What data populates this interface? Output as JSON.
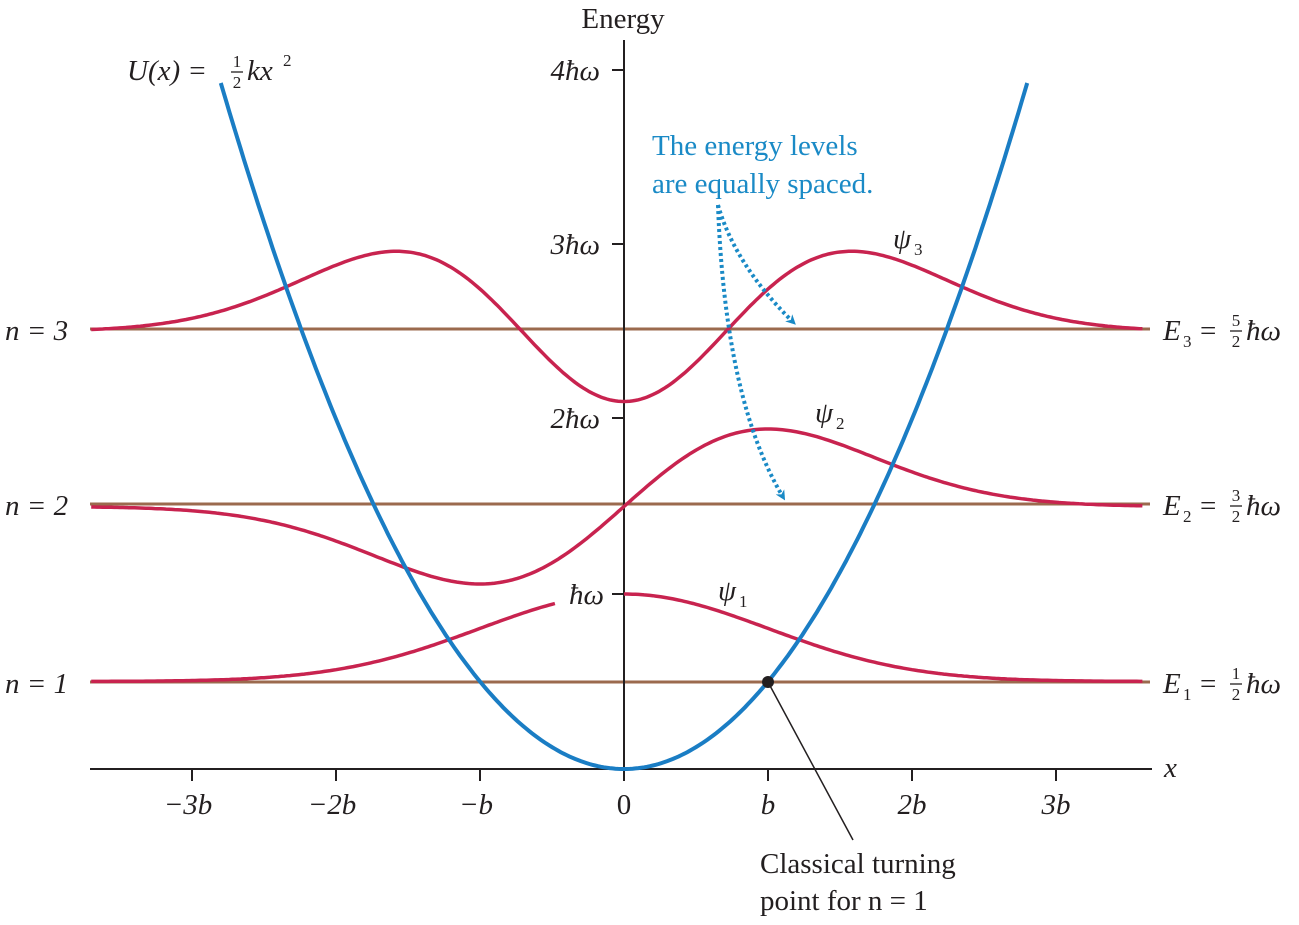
{
  "axis": {
    "y_title": "Energy",
    "x_title": "x",
    "y_ticks": [
      "4ħω",
      "3ħω",
      "2ħω",
      "ħω"
    ],
    "x_ticks": [
      "−3b",
      "−2b",
      "−b",
      "0",
      "b",
      "2b",
      "3b"
    ]
  },
  "potential": {
    "label_main": "U(x) =",
    "label_frac_num": "1",
    "label_frac_den": "2",
    "label_tail": "kx",
    "label_exp": "2"
  },
  "levels": [
    {
      "n_label": "n = 3",
      "e_sym": "E",
      "e_sub": "3",
      "e_num": "5",
      "e_den": "2",
      "e_unit": "ħω",
      "psi": "ψ",
      "psi_sub": "3"
    },
    {
      "n_label": "n = 2",
      "e_sym": "E",
      "e_sub": "2",
      "e_num": "3",
      "e_den": "2",
      "e_unit": "ħω",
      "psi": "ψ",
      "psi_sub": "2"
    },
    {
      "n_label": "n = 1",
      "e_sym": "E",
      "e_sub": "1",
      "e_num": "1",
      "e_den": "2",
      "e_unit": "ħω",
      "psi": "ψ",
      "psi_sub": "1"
    }
  ],
  "annotation": {
    "line1": "The energy levels",
    "line2": "are equally spaced."
  },
  "turning_point": {
    "line1": "Classical turning",
    "line2": "point for n = 1"
  },
  "colors": {
    "potential": "#1a7dc4",
    "wavefunction": "#c8234f",
    "level_line": "#9b6a4e",
    "axis": "#231f20",
    "annotation": "#1a8ac6"
  }
}
